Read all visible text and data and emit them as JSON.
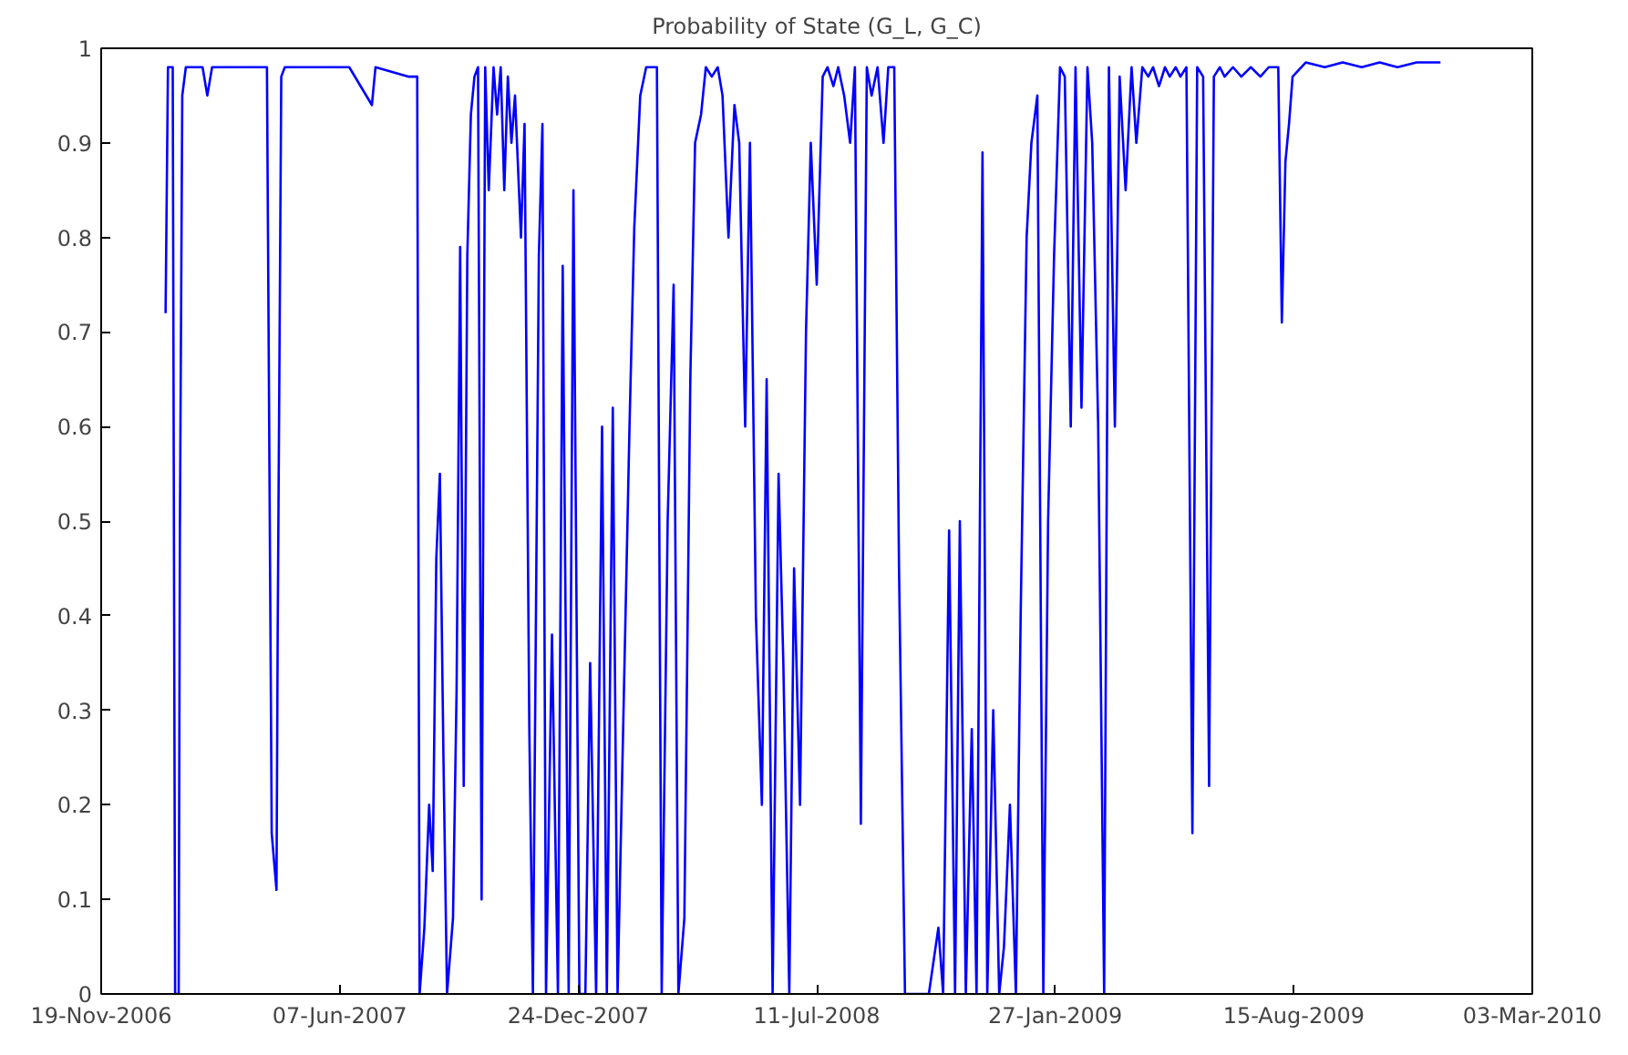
{
  "chart_data": {
    "type": "line",
    "title": "Probability of State (G_L, G_C)",
    "color": "#0000ff",
    "x": [
      "2007-01-12",
      "2007-01-14",
      "2007-01-18",
      "2007-01-20",
      "2007-01-23",
      "2007-01-24",
      "2007-01-26",
      "2007-01-29",
      "2007-02-12",
      "2007-02-16",
      "2007-02-20",
      "2007-04-07",
      "2007-04-11",
      "2007-04-15",
      "2007-04-16",
      "2007-04-19",
      "2007-04-22",
      "2007-06-15",
      "2007-07-04",
      "2007-07-07",
      "2007-08-04",
      "2007-08-11",
      "2007-08-13",
      "2007-08-17",
      "2007-08-21",
      "2007-08-24",
      "2007-08-27",
      "2007-08-30",
      "2007-09-02",
      "2007-09-05",
      "2007-09-10",
      "2007-09-13",
      "2007-09-16",
      "2007-09-19",
      "2007-09-22",
      "2007-09-25",
      "2007-09-28",
      "2007-10-01",
      "2007-10-04",
      "2007-10-07",
      "2007-10-10",
      "2007-10-14",
      "2007-10-17",
      "2007-10-20",
      "2007-10-23",
      "2007-10-26",
      "2007-10-29",
      "2007-11-01",
      "2007-11-06",
      "2007-11-09",
      "2007-11-13",
      "2007-11-16",
      "2007-11-21",
      "2007-11-24",
      "2007-11-27",
      "2007-12-02",
      "2007-12-07",
      "2007-12-11",
      "2007-12-16",
      "2007-12-20",
      "2007-12-25",
      "2007-12-30",
      "2008-01-03",
      "2008-01-08",
      "2008-01-13",
      "2008-01-17",
      "2008-01-22",
      "2008-01-26",
      "2008-01-31",
      "2008-02-05",
      "2008-02-09",
      "2008-02-14",
      "2008-02-19",
      "2008-02-23",
      "2008-02-28",
      "2008-03-03",
      "2008-03-08",
      "2008-03-13",
      "2008-03-17",
      "2008-03-22",
      "2008-03-27",
      "2008-03-31",
      "2008-04-05",
      "2008-04-09",
      "2008-04-14",
      "2008-04-19",
      "2008-04-23",
      "2008-04-28",
      "2008-05-03",
      "2008-05-07",
      "2008-05-12",
      "2008-05-16",
      "2008-05-21",
      "2008-05-26",
      "2008-05-30",
      "2008-06-04",
      "2008-06-09",
      "2008-06-13",
      "2008-06-18",
      "2008-06-22",
      "2008-06-27",
      "2008-07-02",
      "2008-07-06",
      "2008-07-11",
      "2008-07-16",
      "2008-07-20",
      "2008-07-25",
      "2008-07-29",
      "2008-08-03",
      "2008-08-08",
      "2008-08-12",
      "2008-08-17",
      "2008-08-22",
      "2008-08-26",
      "2008-08-31",
      "2008-09-05",
      "2008-09-09",
      "2008-09-14",
      "2008-09-18",
      "2008-09-23",
      "2008-09-28",
      "2008-10-05",
      "2008-10-13",
      "2008-10-21",
      "2008-10-25",
      "2008-10-30",
      "2008-11-04",
      "2008-11-08",
      "2008-11-13",
      "2008-11-18",
      "2008-11-22",
      "2008-11-27",
      "2008-12-01",
      "2008-12-06",
      "2008-12-11",
      "2008-12-15",
      "2008-12-20",
      "2008-12-25",
      "2008-12-29",
      "2009-01-03",
      "2009-01-07",
      "2009-01-12",
      "2009-01-17",
      "2009-01-21",
      "2009-01-26",
      "2009-01-31",
      "2009-02-04",
      "2009-02-09",
      "2009-02-13",
      "2009-02-18",
      "2009-02-23",
      "2009-02-27",
      "2009-03-04",
      "2009-03-09",
      "2009-03-13",
      "2009-03-18",
      "2009-03-22",
      "2009-03-27",
      "2009-04-01",
      "2009-04-05",
      "2009-04-10",
      "2009-04-15",
      "2009-04-19",
      "2009-04-24",
      "2009-04-29",
      "2009-05-03",
      "2009-05-08",
      "2009-05-12",
      "2009-05-17",
      "2009-05-22",
      "2009-05-26",
      "2009-05-31",
      "2009-06-05",
      "2009-06-09",
      "2009-06-14",
      "2009-06-18",
      "2009-06-25",
      "2009-07-02",
      "2009-07-10",
      "2009-07-18",
      "2009-07-25",
      "2009-08-02",
      "2009-08-05",
      "2009-08-08",
      "2009-08-11",
      "2009-08-14",
      "2009-08-25",
      "2009-09-10",
      "2009-09-25",
      "2009-10-11",
      "2009-10-26",
      "2009-11-10",
      "2009-11-26",
      "2009-12-16"
    ],
    "values": [
      0.72,
      0.98,
      0.98,
      0,
      0,
      0.49,
      0.95,
      0.98,
      0.98,
      0.95,
      0.98,
      0.98,
      0.17,
      0.11,
      0.38,
      0.97,
      0.98,
      0.98,
      0.94,
      0.98,
      0.97,
      0.97,
      0,
      0.07,
      0.2,
      0.13,
      0.46,
      0.55,
      0.25,
      0,
      0.08,
      0.32,
      0.79,
      0.22,
      0.78,
      0.93,
      0.97,
      0.98,
      0.1,
      0.98,
      0.85,
      0.98,
      0.93,
      0.98,
      0.85,
      0.97,
      0.9,
      0.95,
      0.8,
      0.92,
      0.28,
      0,
      0.78,
      0.92,
      0,
      0.38,
      0,
      0.77,
      0,
      0.85,
      0,
      0,
      0.35,
      0,
      0.6,
      0,
      0.62,
      0,
      0.3,
      0.6,
      0.81,
      0.95,
      0.98,
      0.98,
      0.98,
      0,
      0.5,
      0.75,
      0,
      0.08,
      0.65,
      0.9,
      0.93,
      0.98,
      0.97,
      0.98,
      0.95,
      0.8,
      0.94,
      0.9,
      0.6,
      0.9,
      0.4,
      0.2,
      0.65,
      0,
      0.55,
      0.35,
      0,
      0.45,
      0.2,
      0.7,
      0.9,
      0.75,
      0.97,
      0.98,
      0.96,
      0.98,
      0.95,
      0.9,
      0.98,
      0.18,
      0.98,
      0.95,
      0.98,
      0.9,
      0.98,
      0.98,
      0.45,
      0,
      0,
      0,
      0,
      0.07,
      0,
      0.49,
      0,
      0.5,
      0,
      0.28,
      0,
      0.89,
      0,
      0.3,
      0,
      0.05,
      0.2,
      0,
      0.4,
      0.8,
      0.9,
      0.95,
      0,
      0.5,
      0.78,
      0.98,
      0.97,
      0.6,
      0.98,
      0.62,
      0.98,
      0.9,
      0.6,
      0,
      0.98,
      0.6,
      0.97,
      0.85,
      0.98,
      0.9,
      0.98,
      0.97,
      0.98,
      0.96,
      0.98,
      0.97,
      0.98,
      0.97,
      0.98,
      0.17,
      0.98,
      0.97,
      0.22,
      0.97,
      0.98,
      0.97,
      0.98,
      0.97,
      0.98,
      0.97,
      0.98,
      0.98,
      0.71,
      0.88,
      0.92,
      0.97,
      0.985,
      0.98,
      0.985,
      0.98,
      0.985,
      0.98,
      0.985,
      0.985
    ],
    "xlim": [
      "2006-11-19",
      "2010-03-03"
    ],
    "xticks": [
      {
        "value": "2006-11-19",
        "label": "19-Nov-2006"
      },
      {
        "value": "2007-06-07",
        "label": "07-Jun-2007"
      },
      {
        "value": "2007-12-24",
        "label": "24-Dec-2007"
      },
      {
        "value": "2008-07-11",
        "label": "11-Jul-2008"
      },
      {
        "value": "2009-01-27",
        "label": "27-Jan-2009"
      },
      {
        "value": "2009-08-15",
        "label": "15-Aug-2009"
      },
      {
        "value": "2010-03-03",
        "label": "03-Mar-2010"
      }
    ],
    "ylim": [
      0,
      1
    ],
    "yticks": [
      0,
      0.1,
      0.2,
      0.3,
      0.4,
      0.5,
      0.6,
      0.7,
      0.8,
      0.9,
      1
    ],
    "grid": false,
    "line_style": "solid"
  }
}
